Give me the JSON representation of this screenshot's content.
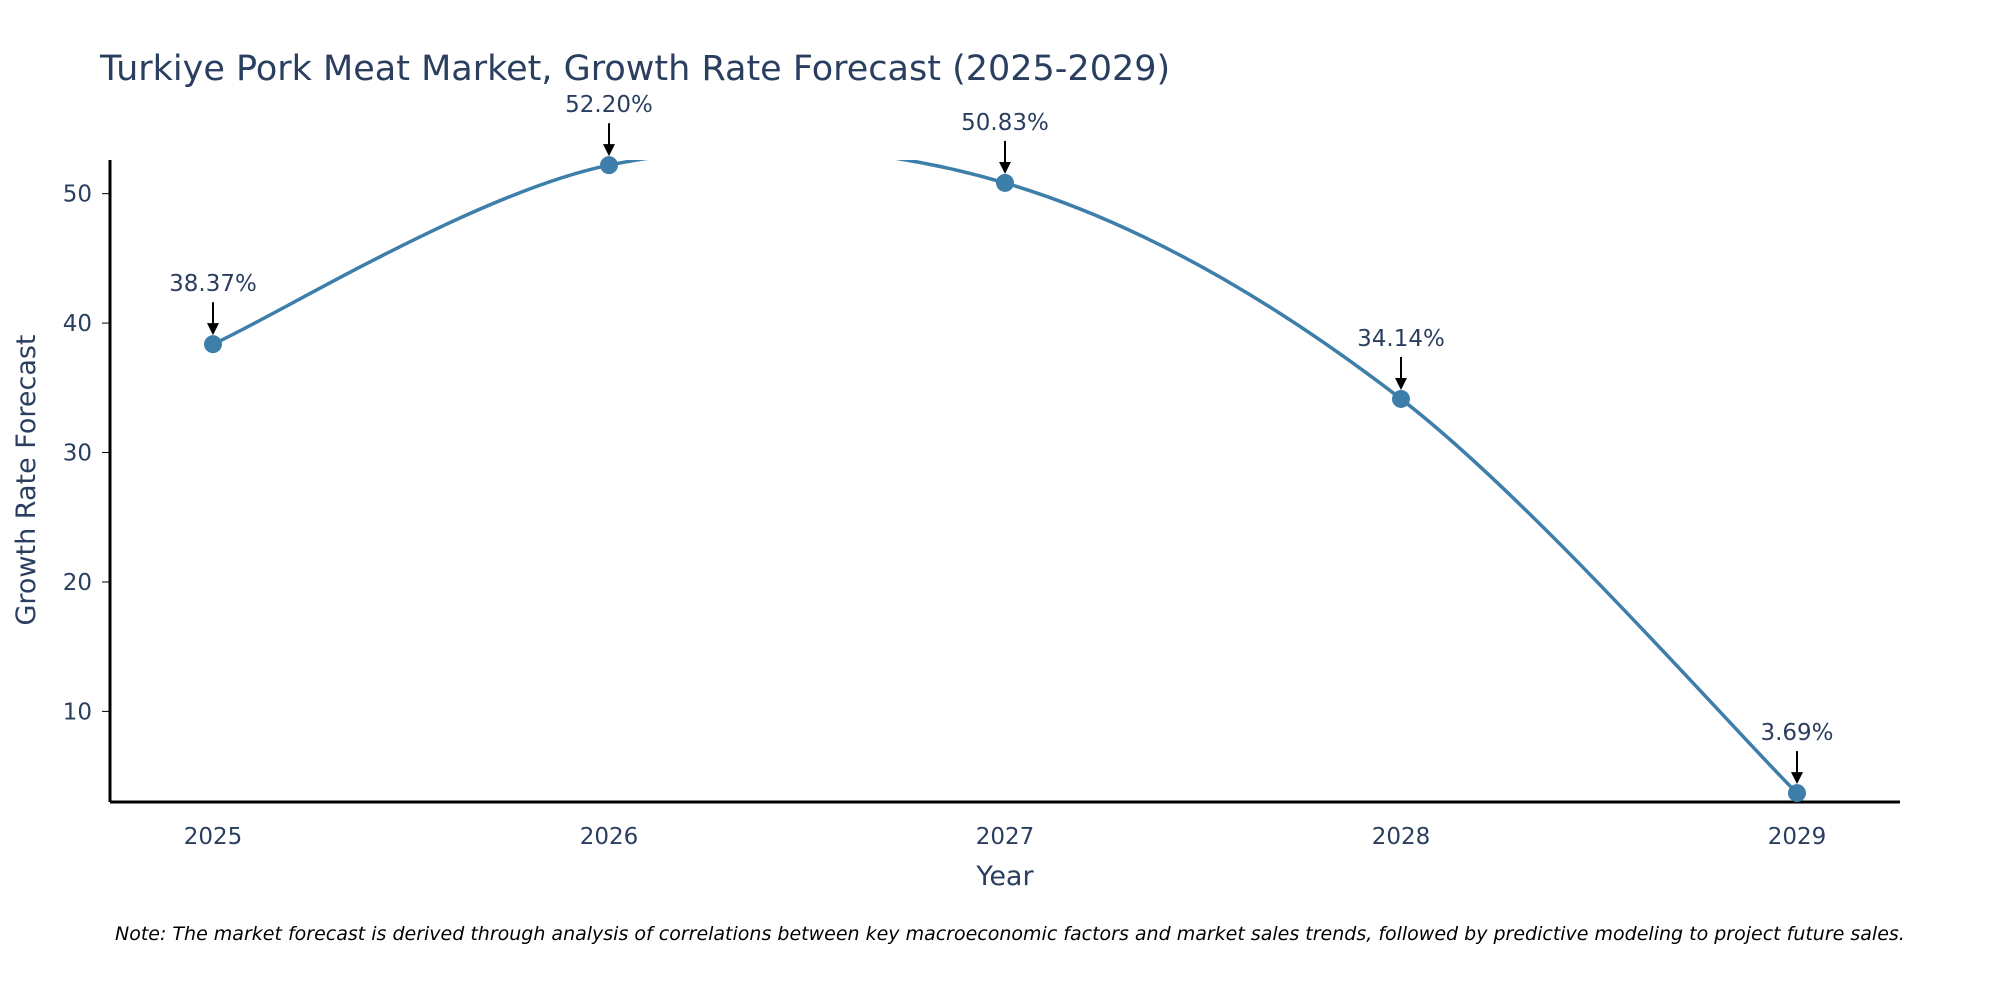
{
  "chart_data": {
    "type": "line",
    "title": "Turkiye Pork Meat Market, Growth Rate Forecast (2025-2029)",
    "xlabel": "Year",
    "ylabel": "Growth Rate Forecast",
    "categories": [
      "2025",
      "2026",
      "2027",
      "2028",
      "2029"
    ],
    "values": [
      38.37,
      52.2,
      50.83,
      34.14,
      3.69
    ],
    "data_labels": [
      "38.37%",
      "52.20%",
      "50.83%",
      "34.14%",
      "3.69%"
    ],
    "ylim": [
      3,
      52.6
    ],
    "yticks": [
      10,
      20,
      30,
      40,
      50
    ],
    "grid": false,
    "line_color": "#3d7eaa",
    "marker_color": "#3d7eaa",
    "arrow_color": "#000000"
  },
  "note": "Note: The market forecast is derived through analysis of correlations between key macroeconomic factors and market sales trends, followed by predictive modeling to project future sales."
}
